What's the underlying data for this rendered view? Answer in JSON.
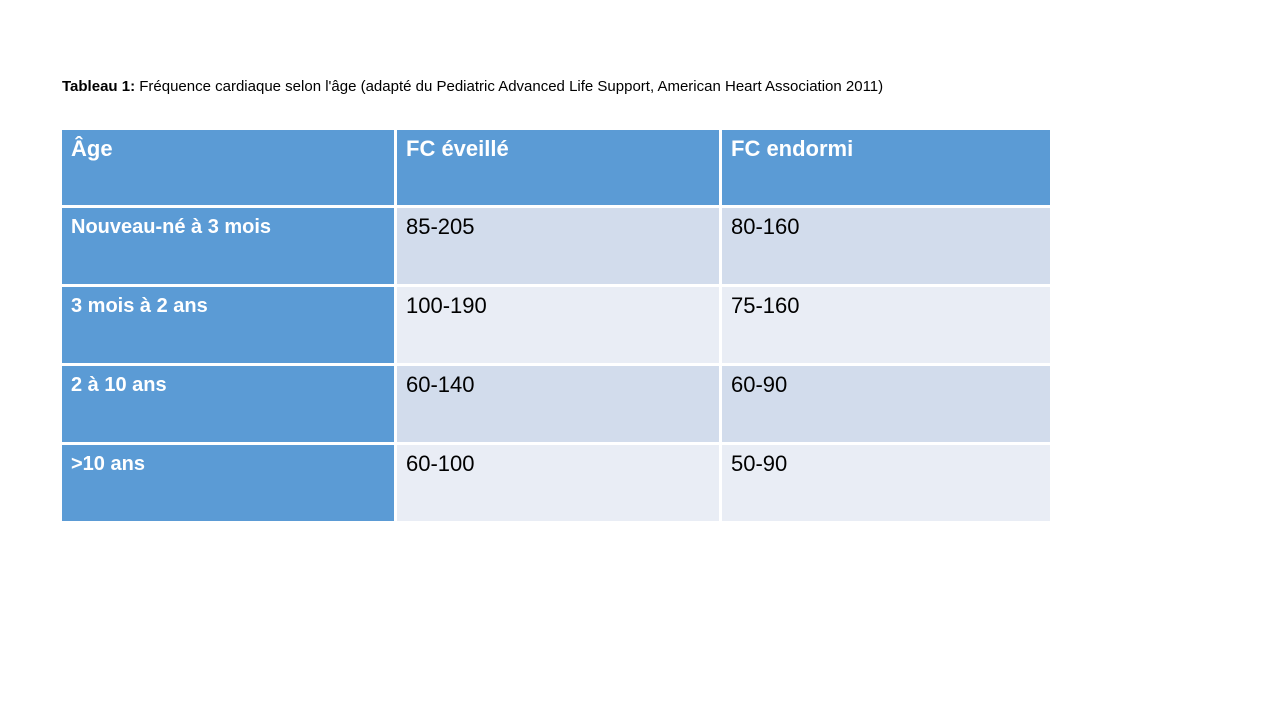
{
  "title": {
    "label": "Tableau 1:",
    "text": "Fréquence cardiaque selon l'âge (adapté du Pediatric Advanced Life Support, American Heart Association 2011)"
  },
  "table": {
    "headers": [
      "Âge",
      "FC éveillé",
      "FC endormi"
    ],
    "rows": [
      {
        "age": "Nouveau-né à 3 mois",
        "fc_eveille": "85-205",
        "fc_endormi": "80-160"
      },
      {
        "age": "3 mois à 2 ans",
        "fc_eveille": "100-190",
        "fc_endormi": "75-160"
      },
      {
        "age": "2 à 10 ans",
        "fc_eveille": "60-140",
        "fc_endormi": "60-90"
      },
      {
        "age": ">10 ans",
        "fc_eveille": "60-100",
        "fc_endormi": "50-90"
      }
    ]
  },
  "colors": {
    "header-blue": "#5B9BD5",
    "band-dark": "#D2DCEC",
    "band-light": "#E9EDF5",
    "header-text": "#FFFFFF",
    "cell-text": "#000000"
  }
}
